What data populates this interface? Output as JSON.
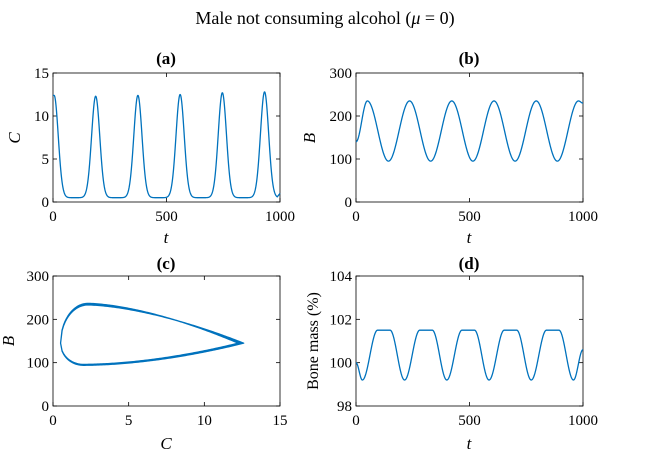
{
  "figure": {
    "title_main": "Male not consuming alcohol (",
    "title_symbol": "μ",
    "title_end": " = 0)"
  },
  "chart_data": [
    {
      "id": "a",
      "type": "line",
      "title": "(a)",
      "xlabel": "t",
      "ylabel": "C",
      "xlim": [
        0,
        1000
      ],
      "ylim": [
        0,
        15
      ],
      "xticks": [
        0,
        500,
        1000
      ],
      "yticks": [
        0,
        5,
        10,
        15
      ],
      "series": [
        {
          "name": "C(t)",
          "color": "#0072BD",
          "model": "periodic",
          "period": 186,
          "start": 12.4,
          "peaks_t": [
            5,
            188,
            374,
            560,
            746,
            932
          ],
          "peaks_v": [
            12.4,
            12.3,
            12.4,
            12.5,
            12.7,
            12.8
          ],
          "troughs_t": [
            88,
            274,
            460,
            646,
            832
          ],
          "troughs_v": [
            0.5,
            0.5,
            0.5,
            0.5,
            0.5
          ],
          "end_v": 1.0
        }
      ]
    },
    {
      "id": "b",
      "type": "line",
      "title": "(b)",
      "xlabel": "t",
      "ylabel": "B",
      "xlim": [
        0,
        1000
      ],
      "ylim": [
        0,
        300
      ],
      "xticks": [
        0,
        500,
        1000
      ],
      "yticks": [
        0,
        100,
        200,
        300
      ],
      "series": [
        {
          "name": "B(t)",
          "color": "#0072BD",
          "peaks_t": [
            50,
            236,
            422,
            608,
            794,
            980
          ],
          "peaks_v": [
            235,
            235,
            235,
            235,
            235,
            235
          ],
          "troughs_t": [
            143,
            329,
            515,
            701,
            887
          ],
          "troughs_v": [
            95,
            95,
            95,
            95,
            95
          ],
          "start_v": 140,
          "end_v": 230
        }
      ]
    },
    {
      "id": "c",
      "type": "line",
      "title": "(c)",
      "xlabel": "C",
      "ylabel": "B",
      "xlim": [
        0,
        15
      ],
      "ylim": [
        0,
        300
      ],
      "xticks": [
        0,
        5,
        10,
        15
      ],
      "yticks": [
        0,
        100,
        200,
        300
      ],
      "series": [
        {
          "name": "phase portrait (C, B)",
          "color": "#0072BD",
          "limit_cycle": {
            "c_min": 0.5,
            "c_max": 12.6,
            "b_min": 95,
            "b_max": 235,
            "b_at_cmax": 145,
            "c_at_bmax": 2.3,
            "c_at_bmin": 2.0
          },
          "loops": 4
        }
      ]
    },
    {
      "id": "d",
      "type": "line",
      "title": "(d)",
      "xlabel": "t",
      "ylabel": "Bone mass (%)",
      "xlim": [
        0,
        1000
      ],
      "ylim": [
        98,
        104
      ],
      "xticks": [
        0,
        500,
        1000
      ],
      "yticks": [
        98,
        100,
        102,
        104
      ],
      "series": [
        {
          "name": "Bone mass (%)",
          "color": "#0072BD",
          "plateau_high": 101.5,
          "trough_low": 99.2,
          "start_v": 100.0,
          "end_v": 100.6,
          "trough_t": [
            28,
            214,
            400,
            586,
            772,
            958
          ],
          "plateaus": [
            [
              95,
              150
            ],
            [
              281,
              336
            ],
            [
              467,
              522
            ],
            [
              653,
              708
            ],
            [
              839,
              894
            ]
          ]
        }
      ]
    }
  ]
}
